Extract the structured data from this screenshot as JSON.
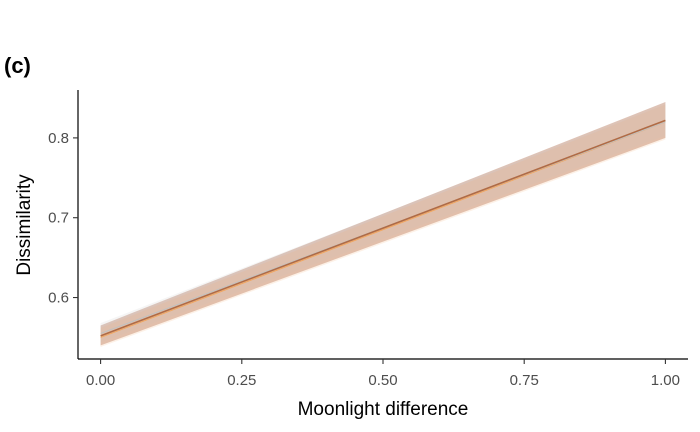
{
  "chart_data": {
    "type": "line",
    "panel_label": "(c)",
    "xlabel": "Moonlight difference",
    "ylabel": "Dissimilarity",
    "xlim": [
      -0.04,
      1.04
    ],
    "ylim": [
      0.523,
      0.86
    ],
    "x_ticks": [
      0.0,
      0.25,
      0.5,
      0.75,
      1.0
    ],
    "x_tick_labels": [
      "0.00",
      "0.25",
      "0.50",
      "0.75",
      "1.00"
    ],
    "y_ticks": [
      0.6,
      0.7,
      0.8
    ],
    "y_tick_labels": [
      "0.6",
      "0.7",
      "0.8"
    ],
    "grid": false,
    "legend": "none",
    "series": [
      {
        "color": "#b06b45",
        "band_color": "#a0522d",
        "x": [
          0.0,
          1.0
        ],
        "y": [
          0.552,
          0.822
        ],
        "lower": [
          0.54,
          0.8
        ],
        "upper": [
          0.565,
          0.845
        ]
      },
      {
        "color": "#c0c0c0",
        "band_color": "#c8c8c8",
        "x": [
          0.0,
          1.0
        ],
        "y": [
          0.555,
          0.82
        ],
        "lower": [
          0.544,
          0.803
        ],
        "upper": [
          0.568,
          0.842
        ]
      },
      {
        "color": "#f2a65e",
        "band_color": "#f4b27a",
        "x": [
          0.0,
          1.0
        ],
        "y": [
          0.55,
          0.82
        ],
        "lower": [
          0.538,
          0.798
        ],
        "upper": [
          0.562,
          0.842
        ]
      }
    ]
  }
}
